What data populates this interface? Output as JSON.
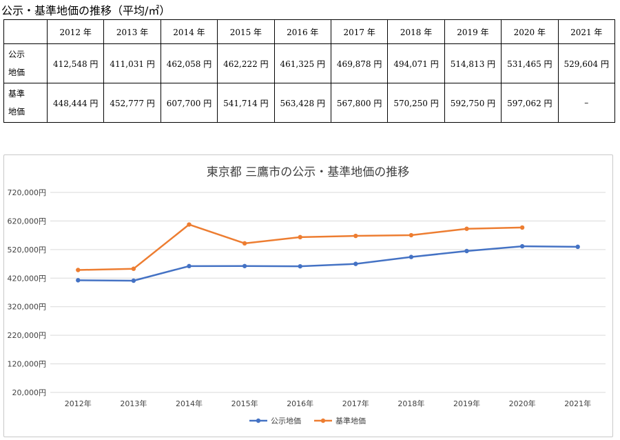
{
  "heading": "公示・基準地価の推移（平均/㎡）",
  "table": {
    "corner": "",
    "years": [
      "2012 年",
      "2013 年",
      "2014 年",
      "2015 年",
      "2016 年",
      "2017 年",
      "2018 年",
      "2019 年",
      "2020 年",
      "2021 年"
    ],
    "rows": [
      {
        "label_line1": "公示",
        "label_line2": "地価",
        "cells": [
          "412,548 円",
          "411,031 円",
          "462,058 円",
          "462,222 円",
          "461,325 円",
          "469,878 円",
          "494,071 円",
          "514,813 円",
          "531,465 円",
          "529,604 円"
        ]
      },
      {
        "label_line1": "基準",
        "label_line2": "地価",
        "cells": [
          "448,444 円",
          "452,777 円",
          "607,700 円",
          "541,714 円",
          "563,428 円",
          "567,800 円",
          "570,250 円",
          "592,750 円",
          "597,062 円",
          "–"
        ]
      }
    ]
  },
  "chart_data": {
    "type": "line",
    "title": "東京都 三鷹市の公示・基準地価の推移",
    "categories": [
      "2012年",
      "2013年",
      "2014年",
      "2015年",
      "2016年",
      "2017年",
      "2018年",
      "2019年",
      "2020年",
      "2021年"
    ],
    "y_ticks": [
      20000,
      120000,
      220000,
      320000,
      420000,
      520000,
      620000,
      720000
    ],
    "y_tick_labels": [
      "20,000円",
      "120,000円",
      "220,000円",
      "320,000円",
      "420,000円",
      "520,000円",
      "620,000円",
      "720,000円"
    ],
    "ylim": [
      20000,
      720000
    ],
    "grid": true,
    "legend_position": "bottom",
    "series": [
      {
        "name": "公示地価",
        "color": "#4472c4",
        "values": [
          412548,
          411031,
          462058,
          462222,
          461325,
          469878,
          494071,
          514813,
          531465,
          529604
        ]
      },
      {
        "name": "基準地価",
        "color": "#ed7d31",
        "values": [
          448444,
          452777,
          607700,
          541714,
          563428,
          567800,
          570250,
          592750,
          597062,
          null
        ]
      }
    ]
  }
}
